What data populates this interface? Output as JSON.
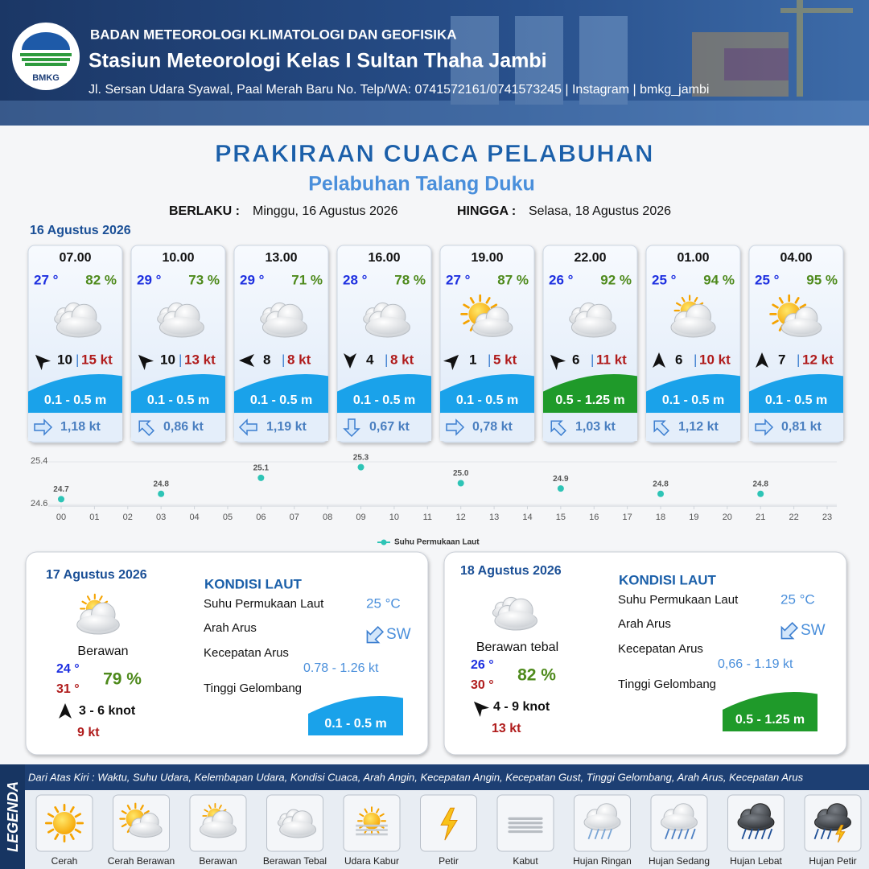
{
  "header": {
    "logo_text": "BMKG",
    "org": "BADAN METEOROLOGI KLIMATOLOGI DAN GEOFISIKA",
    "station": "Stasiun Meteorologi Kelas I Sultan Thaha Jambi",
    "address": "Jl. Sersan Udara Syawal, Paal Merah Baru No. Telp/WA: 0741572161/0741573245 | Instagram | bmkg_jambi"
  },
  "title": "PRAKIRAAN CUACA PELABUHAN",
  "subtitle": "Pelabuhan Talang Duku",
  "validity": {
    "from_label": "BERLAKU :",
    "from": "Minggu, 16 Agustus 2026",
    "to_label": "HINGGA :",
    "to": "Selasa, 18 Agustus 2026"
  },
  "day1": {
    "date": "16 Agustus 2026",
    "slots": [
      {
        "time": "07.00",
        "temp": "27 °",
        "humidity": "82 %",
        "wind": "10",
        "gust": "15 kt",
        "wave": "0.1 - 0.5 m",
        "current": "1,18 kt"
      },
      {
        "time": "10.00",
        "temp": "29 °",
        "humidity": "73 %",
        "wind": "10",
        "gust": "13 kt",
        "wave": "0.1 - 0.5 m",
        "current": "0,86 kt"
      },
      {
        "time": "13.00",
        "temp": "29 °",
        "humidity": "71 %",
        "wind": "8",
        "gust": "8 kt",
        "wave": "0.1 - 0.5 m",
        "current": "1,19 kt"
      },
      {
        "time": "16.00",
        "temp": "28 °",
        "humidity": "78 %",
        "wind": "4",
        "gust": "8 kt",
        "wave": "0.1 - 0.5 m",
        "current": "0,67 kt"
      },
      {
        "time": "19.00",
        "temp": "27 °",
        "humidity": "87 %",
        "wind": "1",
        "gust": "5 kt",
        "wave": "0.1 - 0.5 m",
        "current": "0,78 kt"
      },
      {
        "time": "22.00",
        "temp": "26 °",
        "humidity": "92 %",
        "wind": "6",
        "gust": "11 kt",
        "wave": "0.5 - 1.25 m",
        "current": "1,03 kt"
      },
      {
        "time": "01.00",
        "temp": "25 °",
        "humidity": "94 %",
        "wind": "6",
        "gust": "10 kt",
        "wave": "0.1 - 0.5 m",
        "current": "1,12 kt"
      },
      {
        "time": "04.00",
        "temp": "25 °",
        "humidity": "95 %",
        "wind": "7",
        "gust": "12 kt",
        "wave": "0.1 - 0.5 m",
        "current": "0,81 kt"
      }
    ]
  },
  "chart_data": {
    "type": "scatter",
    "series": [
      {
        "name": "Suhu Permukaan Laut",
        "color": "#2ec4b6",
        "x": [
          0,
          3,
          6,
          9,
          12,
          15,
          18,
          21
        ],
        "values": [
          24.7,
          24.8,
          25.1,
          25.3,
          25.0,
          24.9,
          24.8,
          24.8
        ],
        "value_labels": [
          "24.7",
          "24.8",
          "25.1",
          "25.3",
          "25.0",
          "24.9",
          "24.8",
          "24.8"
        ]
      }
    ],
    "xlim": [
      0,
      23
    ],
    "xticks": [
      {
        "value": 0,
        "label": "00"
      },
      {
        "value": 1,
        "label": "01"
      },
      {
        "value": 2,
        "label": "02"
      },
      {
        "value": 3,
        "label": "03"
      },
      {
        "value": 4,
        "label": "04"
      },
      {
        "value": 5,
        "label": "05"
      },
      {
        "value": 6,
        "label": "06"
      },
      {
        "value": 7,
        "label": "07"
      },
      {
        "value": 8,
        "label": "08"
      },
      {
        "value": 9,
        "label": "09"
      },
      10,
      11,
      12,
      13,
      14,
      15,
      16,
      17,
      18,
      19,
      20,
      21,
      22,
      23
    ],
    "ylim": [
      24.6,
      25.4
    ],
    "yticks": [
      24.6,
      25.4
    ]
  },
  "days": [
    {
      "date": "17 Agustus 2026",
      "weather": "Berawan",
      "temp_min": "24 °",
      "temp_max": "31 °",
      "humidity": "79 %",
      "wind": "3  - 6 knot",
      "gust": "9 kt",
      "sea_title": "KONDISI LAUT",
      "sst_label": "Suhu Permukaan Laut",
      "sst": "25 °C",
      "current_dir_label": "Arah Arus",
      "current_dir": "SW",
      "current_speed_label": "Kecepatan Arus",
      "current_speed": "0.78  - 1.26 kt",
      "wave_label": "Tinggi Gelombang",
      "wave": "0.1 - 0.5 m"
    },
    {
      "date": "18 Agustus 2026",
      "weather": "Berawan tebal",
      "temp_min": "26 °",
      "temp_max": "30 °",
      "humidity": "82 %",
      "wind": "4  - 9 knot",
      "gust": "13 kt",
      "sea_title": "KONDISI LAUT",
      "sst_label": "Suhu Permukaan Laut",
      "sst": "25 °C",
      "current_dir_label": "Arah Arus",
      "current_dir": "SW",
      "current_speed_label": "Kecepatan Arus",
      "current_speed": "0,66 - 1.19 kt",
      "wave_label": "Tinggi Gelombang",
      "wave": "0.5 - 1.25 m"
    }
  ],
  "legend": {
    "title": "LEGENDA",
    "description": "Dari Atas Kiri : Waktu, Suhu Udara, Kelembapan Udara, Kondisi Cuaca, Arah Angin, Kecepatan Angin, Kecepatan Gust, Tinggi Gelombang, Arah Arus, Kecepatan Arus",
    "items": [
      "Cerah",
      "Cerah Berawan",
      "Berawan",
      "Berawan Tebal",
      "Udara Kabur",
      "Petir",
      "Kabut",
      "Hujan Ringan",
      "Hujan Sedang",
      "Hujan Lebat",
      "Hujan Petir"
    ]
  }
}
